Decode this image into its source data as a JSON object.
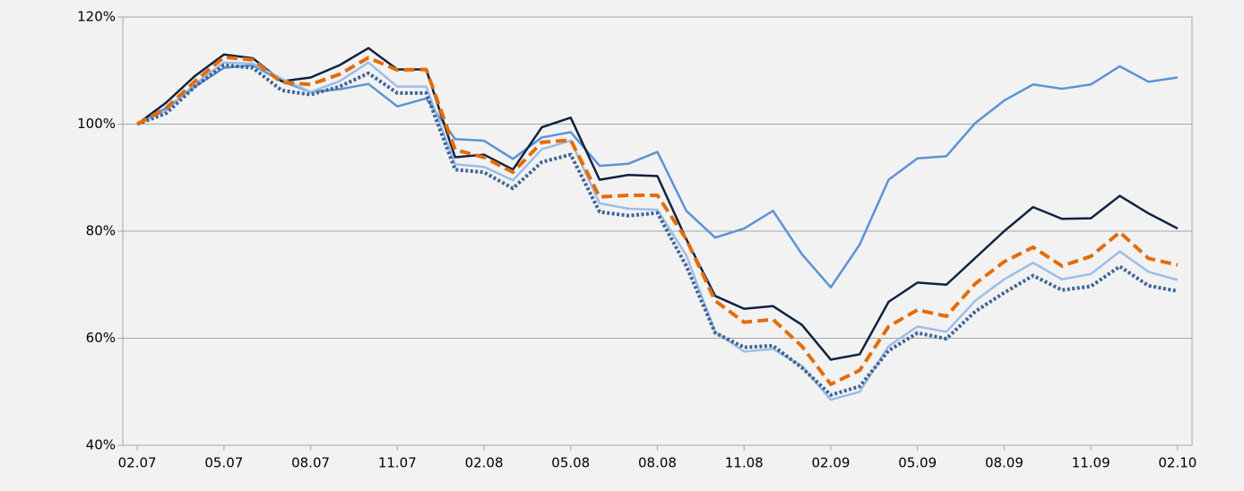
{
  "chart_data": {
    "type": "line",
    "categories": [
      "02.07",
      null,
      null,
      "05.07",
      null,
      null,
      "08.07",
      null,
      null,
      "11.07",
      null,
      null,
      "02.08",
      null,
      null,
      "05.08",
      null,
      null,
      "08.08",
      null,
      null,
      "11.08",
      null,
      null,
      "02.09",
      null,
      null,
      "05.09",
      null,
      null,
      "08.09",
      null,
      null,
      "11.09",
      null,
      null,
      "02.10"
    ],
    "ylim": [
      40,
      120
    ],
    "yticks": [
      {
        "value": 40,
        "label": "40%"
      },
      {
        "value": 60,
        "label": "60%"
      },
      {
        "value": 80,
        "label": "80%"
      },
      {
        "value": 100,
        "label": "100%"
      },
      {
        "value": 120,
        "label": "120%"
      }
    ],
    "grid": true,
    "series": [
      {
        "color": "#5b93d6",
        "style": "solid",
        "values": [
          100,
          103,
          107,
          110.5,
          111,
          108,
          106,
          106.5,
          107.5,
          103.3,
          104.8,
          97.2,
          96.9,
          93.5,
          97.5,
          98.5,
          92.2,
          92.6,
          94.8,
          83.8,
          78.8,
          80.5,
          83.8,
          75.7,
          69.5,
          77.5,
          89.6,
          93.6,
          94,
          100.2,
          104.4,
          107.4,
          106.6,
          107.4,
          110.8,
          107.9,
          108.7
        ]
      },
      {
        "color": "#0f2240",
        "style": "solid",
        "values": [
          100,
          104,
          109,
          113,
          112.3,
          108,
          108.7,
          111,
          114.2,
          110.2,
          110.2,
          93.8,
          94.3,
          91.5,
          99.4,
          101.2,
          89.6,
          90.5,
          90.3,
          78.5,
          67.9,
          65.5,
          66,
          62.5,
          56,
          57,
          66.8,
          70.4,
          70,
          75,
          80,
          84.5,
          82.3,
          82.4,
          86.6,
          83.3,
          80.5
        ]
      },
      {
        "color": "#9dbde6",
        "style": "solid",
        "values": [
          100,
          102.5,
          107.5,
          111.5,
          111.3,
          108.5,
          106,
          108,
          111.5,
          107,
          107,
          92.5,
          92,
          89.5,
          95.3,
          96.9,
          85.2,
          84.2,
          84,
          75.5,
          61.2,
          57.5,
          58,
          54.8,
          48.5,
          50,
          58.5,
          62.2,
          61.2,
          67,
          71,
          74.1,
          71,
          72,
          76.2,
          72.4,
          70.9
        ]
      },
      {
        "color": "#3e6596",
        "style": "dotted",
        "values": [
          100,
          102,
          107,
          111,
          110.5,
          106.3,
          105.5,
          107,
          109.5,
          105.8,
          105.8,
          91.5,
          91,
          88,
          92.9,
          94.3,
          83.6,
          82.9,
          83.4,
          73.5,
          61,
          58.3,
          58.6,
          54.5,
          49.4,
          51,
          57.7,
          61,
          59.9,
          65,
          68.5,
          71.7,
          69,
          69.7,
          73.4,
          69.8,
          68.8
        ]
      },
      {
        "color": "#e36c0a",
        "style": "dashed",
        "values": [
          100,
          103,
          108,
          112.5,
          112,
          107.8,
          107.4,
          109.3,
          112.4,
          110.1,
          110.2,
          95.2,
          93.8,
          91,
          96.6,
          97,
          86.4,
          86.7,
          86.7,
          78.5,
          67,
          63,
          63.5,
          58.5,
          51.4,
          54,
          62.2,
          65.3,
          64.1,
          70.2,
          74.3,
          77,
          73.5,
          75.3,
          79.8,
          74.9,
          73.7
        ]
      }
    ]
  }
}
